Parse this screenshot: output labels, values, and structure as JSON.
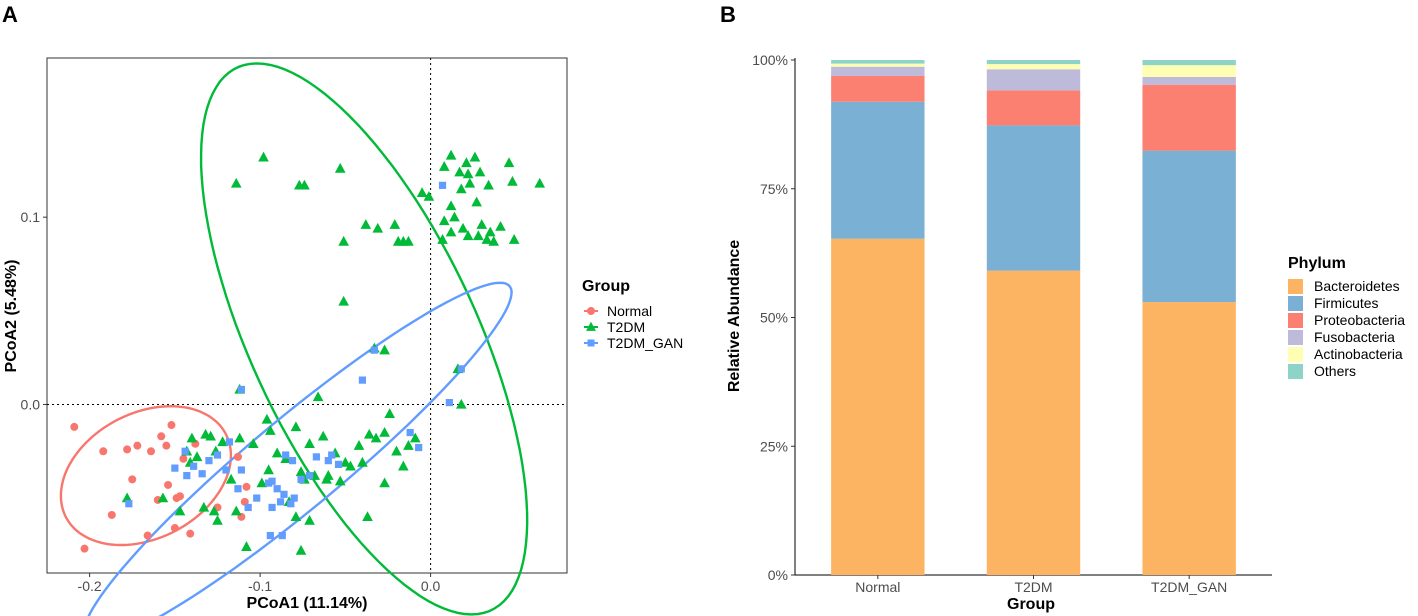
{
  "chart_data": [
    {
      "panel_label": "A",
      "type": "scatter",
      "xlabel": "PCoA1 (11.14%)",
      "ylabel": "PCoA2 (5.48%)",
      "xlim": [
        -0.225,
        0.08
      ],
      "ylim": [
        -0.09,
        0.185
      ],
      "x_ticks": [
        -0.2,
        -0.1,
        0.0
      ],
      "x_tick_labels": [
        "-0.2",
        "-0.1",
        "0.0"
      ],
      "y_ticks": [
        0.0,
        0.1
      ],
      "y_tick_labels": [
        "0.0",
        "0.1"
      ],
      "reference_lines": {
        "x": 0,
        "y": 0,
        "style": "dotted"
      },
      "legend": {
        "title": "Group",
        "placement": "right"
      },
      "series": [
        {
          "name": "Normal",
          "marker": "circle",
          "color": "#F8766D",
          "points": [
            [
              -0.209,
              -0.012
            ],
            [
              -0.203,
              -0.077
            ],
            [
              -0.192,
              -0.025
            ],
            [
              -0.187,
              -0.059
            ],
            [
              -0.178,
              -0.024
            ],
            [
              -0.175,
              -0.04
            ],
            [
              -0.172,
              -0.022
            ],
            [
              -0.166,
              -0.07
            ],
            [
              -0.164,
              -0.025
            ],
            [
              -0.16,
              -0.051
            ],
            [
              -0.158,
              -0.017
            ],
            [
              -0.155,
              -0.022
            ],
            [
              -0.152,
              -0.011
            ],
            [
              -0.154,
              -0.043
            ],
            [
              -0.15,
              -0.066
            ],
            [
              -0.149,
              -0.05
            ],
            [
              -0.147,
              -0.049
            ],
            [
              -0.145,
              -0.029
            ],
            [
              -0.141,
              -0.069
            ],
            [
              -0.138,
              -0.021
            ],
            [
              -0.125,
              -0.055
            ],
            [
              -0.113,
              -0.028
            ],
            [
              -0.108,
              -0.044
            ],
            [
              -0.109,
              -0.052
            ],
            [
              -0.111,
              -0.06
            ]
          ]
        },
        {
          "name": "T2DM",
          "marker": "triangle",
          "color": "#00BA38",
          "points": [
            [
              -0.098,
              0.132
            ],
            [
              -0.114,
              0.118
            ],
            [
              -0.077,
              0.117
            ],
            [
              -0.074,
              0.117
            ],
            [
              -0.053,
              0.126
            ],
            [
              -0.051,
              0.087
            ],
            [
              -0.051,
              0.055
            ],
            [
              -0.038,
              0.096
            ],
            [
              -0.031,
              0.094
            ],
            [
              -0.021,
              0.096
            ],
            [
              -0.019,
              0.087
            ],
            [
              -0.016,
              0.087
            ],
            [
              -0.013,
              0.087
            ],
            [
              -0.005,
              0.113
            ],
            [
              -0.001,
              0.111
            ],
            [
              0.008,
              0.127
            ],
            [
              0.012,
              0.133
            ],
            [
              0.017,
              0.124
            ],
            [
              0.021,
              0.129
            ],
            [
              0.022,
              0.123
            ],
            [
              0.023,
              0.118
            ],
            [
              0.018,
              0.115
            ],
            [
              0.012,
              0.106
            ],
            [
              0.014,
              0.1
            ],
            [
              0.019,
              0.094
            ],
            [
              0.022,
              0.09
            ],
            [
              0.012,
              0.092
            ],
            [
              0.008,
              0.098
            ],
            [
              0.007,
              0.088
            ],
            [
              0.026,
              0.132
            ],
            [
              0.029,
              0.124
            ],
            [
              0.034,
              0.117
            ],
            [
              0.027,
              0.108
            ],
            [
              0.03,
              0.096
            ],
            [
              0.028,
              0.09
            ],
            [
              0.033,
              0.088
            ],
            [
              0.035,
              0.092
            ],
            [
              0.037,
              0.087
            ],
            [
              0.041,
              0.095
            ],
            [
              0.046,
              0.129
            ],
            [
              0.048,
              0.119
            ],
            [
              0.049,
              0.088
            ],
            [
              0.064,
              0.118
            ],
            [
              -0.033,
              0.03
            ],
            [
              -0.027,
              0.029
            ],
            [
              -0.112,
              0.008
            ],
            [
              -0.066,
              0.004
            ],
            [
              0.016,
              0.019
            ],
            [
              -0.132,
              -0.016
            ],
            [
              -0.14,
              -0.018
            ],
            [
              -0.143,
              -0.025
            ],
            [
              -0.141,
              -0.031
            ],
            [
              -0.137,
              -0.028
            ],
            [
              -0.129,
              -0.017
            ],
            [
              -0.126,
              -0.025
            ],
            [
              -0.122,
              -0.02
            ],
            [
              -0.112,
              -0.018
            ],
            [
              -0.104,
              -0.021
            ],
            [
              -0.096,
              -0.008
            ],
            [
              -0.094,
              -0.014
            ],
            [
              -0.09,
              -0.026
            ],
            [
              -0.085,
              -0.029
            ],
            [
              -0.079,
              -0.012
            ],
            [
              -0.071,
              -0.021
            ],
            [
              -0.063,
              -0.017
            ],
            [
              -0.056,
              -0.026
            ],
            [
              -0.053,
              -0.041
            ],
            [
              -0.047,
              -0.033
            ],
            [
              -0.042,
              -0.022
            ],
            [
              -0.036,
              -0.016
            ],
            [
              -0.032,
              -0.018
            ],
            [
              -0.024,
              -0.005
            ],
            [
              -0.02,
              -0.025
            ],
            [
              -0.016,
              -0.033
            ],
            [
              -0.013,
              -0.022
            ],
            [
              -0.009,
              -0.018
            ],
            [
              -0.06,
              -0.038
            ],
            [
              -0.061,
              -0.04
            ],
            [
              -0.068,
              -0.038
            ],
            [
              -0.074,
              -0.04
            ],
            [
              -0.037,
              -0.06
            ],
            [
              -0.027,
              -0.042
            ],
            [
              -0.05,
              -0.031
            ],
            [
              -0.04,
              -0.031
            ],
            [
              -0.027,
              -0.015
            ],
            [
              0.018,
              0.0
            ],
            [
              -0.178,
              -0.05
            ],
            [
              -0.157,
              -0.05
            ],
            [
              -0.147,
              -0.057
            ],
            [
              -0.133,
              -0.055
            ],
            [
              -0.127,
              -0.057
            ],
            [
              -0.125,
              -0.062
            ],
            [
              -0.114,
              -0.057
            ],
            [
              -0.108,
              -0.076
            ],
            [
              -0.079,
              -0.06
            ],
            [
              -0.076,
              -0.078
            ],
            [
              -0.071,
              -0.062
            ],
            [
              -0.095,
              -0.035
            ],
            [
              -0.099,
              -0.042
            ],
            [
              -0.083,
              -0.052
            ],
            [
              -0.076,
              -0.036
            ],
            [
              -0.117,
              -0.04
            ]
          ]
        },
        {
          "name": "T2DM_GAN",
          "marker": "square",
          "color": "#619CFF",
          "points": [
            [
              0.007,
              0.117
            ],
            [
              -0.033,
              0.029
            ],
            [
              -0.04,
              0.013
            ],
            [
              0.011,
              0.001
            ],
            [
              -0.111,
              0.008
            ],
            [
              0.018,
              0.019
            ],
            [
              -0.012,
              -0.015
            ],
            [
              -0.007,
              -0.023
            ],
            [
              -0.118,
              -0.02
            ],
            [
              -0.125,
              -0.027
            ],
            [
              -0.13,
              -0.03
            ],
            [
              -0.134,
              -0.037
            ],
            [
              -0.143,
              -0.038
            ],
            [
              -0.15,
              -0.034
            ],
            [
              -0.139,
              -0.033
            ],
            [
              -0.12,
              -0.035
            ],
            [
              -0.113,
              -0.045
            ],
            [
              -0.107,
              -0.055
            ],
            [
              -0.095,
              -0.042
            ],
            [
              -0.09,
              -0.045
            ],
            [
              -0.086,
              -0.048
            ],
            [
              -0.082,
              -0.053
            ],
            [
              -0.088,
              -0.052
            ],
            [
              -0.093,
              -0.041
            ],
            [
              -0.094,
              -0.07
            ],
            [
              -0.087,
              -0.07
            ],
            [
              -0.102,
              -0.05
            ],
            [
              -0.085,
              -0.027
            ],
            [
              -0.081,
              -0.03
            ],
            [
              -0.067,
              -0.028
            ],
            [
              -0.06,
              -0.03
            ],
            [
              -0.054,
              -0.032
            ],
            [
              -0.071,
              -0.038
            ],
            [
              -0.076,
              -0.04
            ],
            [
              -0.08,
              -0.05
            ],
            [
              -0.093,
              -0.055
            ],
            [
              -0.177,
              -0.053
            ],
            [
              -0.144,
              -0.025
            ],
            [
              -0.058,
              -0.027
            ],
            [
              -0.111,
              -0.035
            ]
          ]
        }
      ],
      "ellipses": [
        {
          "group": "Normal",
          "center": [
            -0.167,
            -0.038
          ],
          "semi_axes": [
            0.052,
            0.034
          ],
          "rotation_deg": 22
        },
        {
          "group": "T2DM",
          "center": [
            -0.039,
            0.035
          ],
          "semi_axes": [
            0.163,
            0.065
          ],
          "rotation_deg": -62
        },
        {
          "group": "T2DM_GAN",
          "center": [
            -0.078,
            -0.031
          ],
          "semi_axes": [
            0.156,
            0.025
          ],
          "rotation_deg": 37
        }
      ]
    },
    {
      "panel_label": "B",
      "type": "bar",
      "stacked": true,
      "categories": [
        "Normal",
        "T2DM",
        "T2DM_GAN"
      ],
      "xlabel": "Group",
      "ylabel": "Relative Abundance",
      "ylim": [
        0,
        100
      ],
      "y_ticks": [
        0,
        25,
        50,
        75,
        100
      ],
      "y_tick_labels": [
        "0%",
        "25%",
        "50%",
        "75%",
        "100%"
      ],
      "legend": {
        "title": "Phylum",
        "placement": "right"
      },
      "series": [
        {
          "name": "Bacteroidetes",
          "color": "#FDB462",
          "values": [
            65.3,
            59.1,
            53.0
          ]
        },
        {
          "name": "Firmicutes",
          "color": "#7AB0D3",
          "values": [
            26.6,
            28.2,
            29.4
          ]
        },
        {
          "name": "Proteobacteria",
          "color": "#FB8072",
          "values": [
            5.0,
            6.8,
            12.8
          ]
        },
        {
          "name": "Fusobacteria",
          "color": "#BEBADA",
          "values": [
            1.8,
            4.1,
            1.5
          ]
        },
        {
          "name": "Actinobacteria",
          "color": "#FFFFB3",
          "values": [
            0.6,
            1.0,
            2.3
          ]
        },
        {
          "name": "Others",
          "color": "#8DD3C7",
          "values": [
            0.7,
            0.8,
            1.0
          ]
        }
      ]
    }
  ]
}
